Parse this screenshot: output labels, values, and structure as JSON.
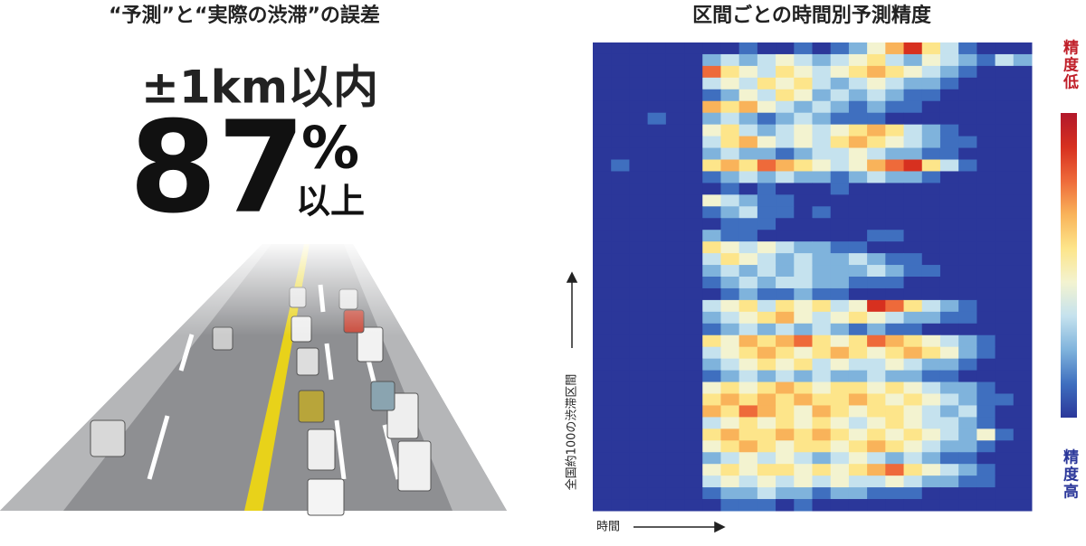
{
  "left": {
    "title": "“予測”と“実際の渋滞”の誤差",
    "headline": "±1km以内",
    "figure": "87",
    "unit": "%",
    "suffix": "以上"
  },
  "chart_data": {
    "type": "heatmap",
    "title": "区間ごとの時間別予測精度",
    "x_label": "時間",
    "y_label": "全国約100の渋滞区間",
    "colorbar_high_label": "精度低",
    "colorbar_low_label": "精度高",
    "zlim": [
      0,
      9
    ],
    "colors": [
      "#2b379a",
      "#3f6fbf",
      "#7fb3dc",
      "#c5e2ee",
      "#f3f3d0",
      "#fde58a",
      "#f9b35a",
      "#ee6a3a",
      "#d7301f",
      "#b2182b"
    ],
    "values": [
      [
        0,
        0,
        0,
        0,
        0,
        0,
        0,
        0,
        1,
        0,
        0,
        1,
        0,
        1,
        2,
        4,
        6,
        8,
        5,
        3,
        1,
        0,
        0,
        0
      ],
      [
        0,
        0,
        0,
        0,
        0,
        0,
        2,
        3,
        2,
        3,
        4,
        3,
        2,
        3,
        4,
        5,
        3,
        2,
        4,
        3,
        2,
        1,
        3,
        2
      ],
      [
        0,
        0,
        0,
        0,
        0,
        0,
        7,
        5,
        4,
        3,
        5,
        4,
        3,
        4,
        5,
        6,
        5,
        4,
        3,
        2,
        1,
        0,
        0,
        0
      ],
      [
        0,
        0,
        0,
        0,
        0,
        0,
        3,
        4,
        3,
        5,
        4,
        5,
        3,
        2,
        3,
        4,
        3,
        2,
        2,
        1,
        0,
        0,
        0,
        0
      ],
      [
        0,
        0,
        0,
        0,
        0,
        0,
        1,
        2,
        4,
        3,
        5,
        4,
        2,
        3,
        2,
        3,
        2,
        1,
        1,
        0,
        0,
        0,
        0,
        0
      ],
      [
        0,
        0,
        0,
        0,
        0,
        0,
        6,
        5,
        6,
        4,
        3,
        2,
        3,
        2,
        1,
        2,
        1,
        1,
        0,
        0,
        0,
        0,
        0,
        0
      ],
      [
        0,
        0,
        0,
        1,
        0,
        0,
        2,
        3,
        2,
        1,
        2,
        3,
        2,
        1,
        1,
        1,
        0,
        0,
        0,
        0,
        0,
        0,
        0,
        0
      ],
      [
        0,
        0,
        0,
        0,
        0,
        0,
        4,
        5,
        3,
        2,
        3,
        4,
        3,
        4,
        5,
        6,
        5,
        3,
        2,
        1,
        0,
        0,
        0,
        0
      ],
      [
        0,
        0,
        0,
        0,
        0,
        0,
        3,
        5,
        6,
        4,
        3,
        4,
        3,
        5,
        6,
        5,
        4,
        3,
        2,
        1,
        1,
        0,
        0,
        0
      ],
      [
        0,
        0,
        0,
        0,
        0,
        0,
        2,
        3,
        2,
        2,
        1,
        2,
        3,
        3,
        4,
        3,
        2,
        2,
        1,
        1,
        0,
        0,
        0,
        0
      ],
      [
        0,
        1,
        0,
        0,
        0,
        0,
        5,
        6,
        5,
        7,
        6,
        5,
        4,
        3,
        4,
        6,
        7,
        8,
        5,
        3,
        1,
        0,
        0,
        0
      ],
      [
        0,
        0,
        0,
        0,
        0,
        0,
        1,
        2,
        3,
        2,
        3,
        2,
        2,
        1,
        2,
        3,
        2,
        2,
        1,
        0,
        0,
        0,
        0,
        0
      ],
      [
        0,
        0,
        0,
        0,
        0,
        0,
        0,
        1,
        0,
        1,
        0,
        0,
        0,
        1,
        0,
        0,
        0,
        0,
        0,
        0,
        0,
        0,
        0,
        0
      ],
      [
        0,
        0,
        0,
        0,
        0,
        0,
        4,
        3,
        2,
        1,
        1,
        0,
        0,
        0,
        0,
        0,
        0,
        0,
        0,
        0,
        0,
        0,
        0,
        0
      ],
      [
        0,
        0,
        0,
        0,
        0,
        0,
        1,
        2,
        3,
        1,
        1,
        0,
        1,
        0,
        0,
        0,
        0,
        0,
        0,
        0,
        0,
        0,
        0,
        0
      ],
      [
        0,
        0,
        0,
        0,
        0,
        0,
        0,
        1,
        1,
        1,
        0,
        0,
        0,
        0,
        0,
        0,
        0,
        0,
        0,
        0,
        0,
        0,
        0,
        0
      ],
      [
        0,
        0,
        0,
        0,
        0,
        0,
        2,
        1,
        1,
        0,
        0,
        0,
        0,
        0,
        0,
        1,
        1,
        0,
        0,
        0,
        0,
        0,
        0,
        0
      ],
      [
        0,
        0,
        0,
        0,
        0,
        0,
        5,
        4,
        3,
        4,
        3,
        2,
        2,
        1,
        1,
        0,
        0,
        0,
        0,
        0,
        0,
        0,
        0,
        0
      ],
      [
        0,
        0,
        0,
        0,
        0,
        0,
        3,
        5,
        4,
        3,
        2,
        3,
        2,
        2,
        3,
        2,
        1,
        1,
        0,
        0,
        0,
        0,
        0,
        0
      ],
      [
        0,
        0,
        0,
        0,
        0,
        0,
        2,
        3,
        2,
        3,
        2,
        3,
        2,
        2,
        2,
        3,
        2,
        1,
        1,
        0,
        0,
        0,
        0,
        0
      ],
      [
        0,
        0,
        0,
        0,
        0,
        0,
        1,
        2,
        3,
        2,
        3,
        3,
        2,
        2,
        1,
        1,
        1,
        0,
        0,
        0,
        0,
        0,
        0,
        0
      ],
      [
        0,
        0,
        0,
        0,
        0,
        0,
        0,
        1,
        2,
        1,
        1,
        2,
        1,
        1,
        0,
        0,
        0,
        0,
        0,
        0,
        0,
        0,
        0,
        0
      ],
      [
        0,
        0,
        0,
        0,
        0,
        0,
        3,
        4,
        5,
        3,
        5,
        4,
        5,
        3,
        4,
        8,
        7,
        5,
        3,
        2,
        1,
        0,
        0,
        0
      ],
      [
        0,
        0,
        0,
        0,
        0,
        0,
        2,
        3,
        4,
        5,
        6,
        4,
        3,
        4,
        5,
        4,
        3,
        2,
        2,
        1,
        1,
        0,
        0,
        0
      ],
      [
        0,
        0,
        0,
        0,
        0,
        0,
        1,
        2,
        3,
        2,
        3,
        2,
        3,
        2,
        1,
        2,
        1,
        1,
        0,
        0,
        0,
        0,
        0,
        0
      ],
      [
        0,
        0,
        0,
        0,
        0,
        0,
        5,
        4,
        6,
        5,
        6,
        7,
        5,
        4,
        5,
        7,
        6,
        5,
        4,
        3,
        2,
        1,
        0,
        0
      ],
      [
        0,
        0,
        0,
        0,
        0,
        0,
        3,
        4,
        5,
        6,
        5,
        4,
        5,
        6,
        5,
        4,
        5,
        6,
        5,
        4,
        2,
        1,
        0,
        0
      ],
      [
        0,
        0,
        0,
        0,
        0,
        0,
        2,
        3,
        4,
        5,
        4,
        5,
        3,
        4,
        3,
        3,
        4,
        3,
        2,
        2,
        1,
        0,
        0,
        0
      ],
      [
        0,
        0,
        0,
        0,
        0,
        0,
        1,
        2,
        3,
        2,
        3,
        2,
        3,
        2,
        2,
        3,
        2,
        2,
        1,
        1,
        0,
        0,
        0,
        0
      ],
      [
        0,
        0,
        0,
        0,
        0,
        0,
        4,
        5,
        4,
        5,
        6,
        5,
        4,
        5,
        5,
        4,
        5,
        4,
        3,
        2,
        2,
        1,
        0,
        0
      ],
      [
        0,
        0,
        0,
        0,
        0,
        0,
        5,
        6,
        5,
        6,
        5,
        6,
        5,
        5,
        6,
        5,
        4,
        5,
        4,
        3,
        2,
        1,
        1,
        0
      ],
      [
        0,
        0,
        0,
        0,
        0,
        0,
        6,
        5,
        7,
        6,
        5,
        4,
        6,
        5,
        4,
        5,
        5,
        4,
        3,
        2,
        3,
        1,
        0,
        0
      ],
      [
        0,
        0,
        0,
        0,
        0,
        0,
        3,
        4,
        5,
        4,
        5,
        4,
        5,
        4,
        3,
        4,
        5,
        4,
        3,
        3,
        2,
        1,
        0,
        0
      ],
      [
        0,
        0,
        0,
        0,
        0,
        0,
        5,
        6,
        5,
        5,
        6,
        5,
        6,
        5,
        4,
        5,
        4,
        5,
        4,
        3,
        2,
        4,
        1,
        0
      ],
      [
        0,
        0,
        0,
        0,
        0,
        0,
        4,
        5,
        6,
        5,
        4,
        5,
        5,
        4,
        5,
        6,
        5,
        4,
        3,
        2,
        2,
        1,
        0,
        0
      ],
      [
        0,
        0,
        0,
        0,
        0,
        0,
        2,
        3,
        4,
        3,
        4,
        3,
        2,
        3,
        4,
        3,
        2,
        3,
        2,
        1,
        1,
        0,
        0,
        0
      ],
      [
        0,
        0,
        0,
        0,
        0,
        0,
        4,
        5,
        4,
        5,
        5,
        4,
        5,
        4,
        5,
        6,
        7,
        5,
        4,
        3,
        2,
        1,
        0,
        0
      ],
      [
        0,
        0,
        0,
        0,
        0,
        0,
        3,
        4,
        3,
        4,
        3,
        4,
        3,
        4,
        3,
        3,
        4,
        3,
        2,
        2,
        1,
        1,
        0,
        0
      ],
      [
        0,
        0,
        0,
        0,
        0,
        0,
        1,
        2,
        2,
        3,
        2,
        2,
        1,
        2,
        2,
        1,
        1,
        1,
        0,
        0,
        0,
        0,
        0,
        0
      ],
      [
        0,
        0,
        0,
        0,
        0,
        0,
        0,
        1,
        1,
        1,
        0,
        1,
        0,
        0,
        0,
        0,
        0,
        0,
        0,
        0,
        0,
        0,
        0,
        0
      ]
    ]
  }
}
